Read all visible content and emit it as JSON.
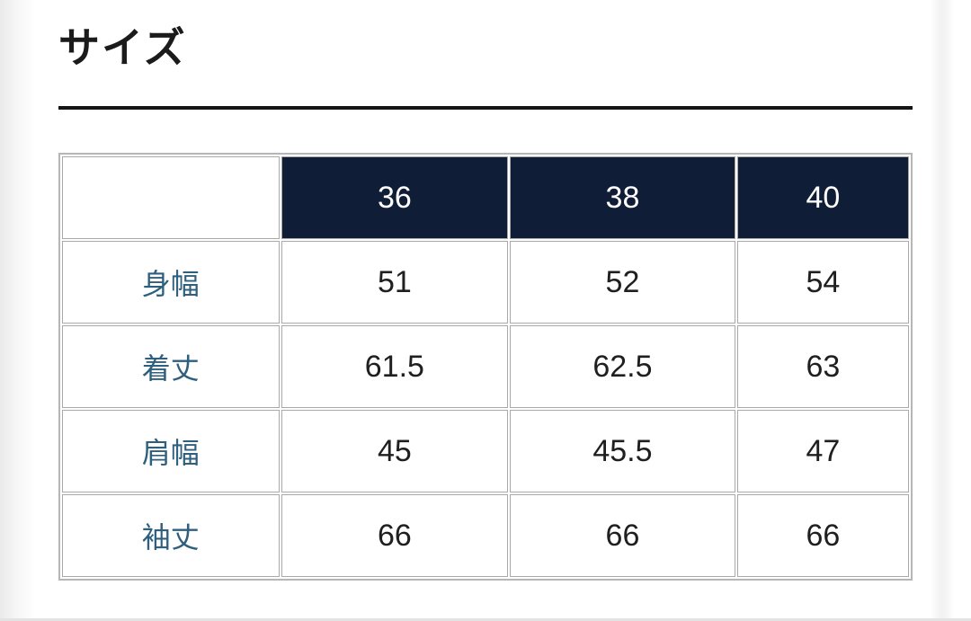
{
  "page": {
    "title": "サイズ"
  },
  "size_table": {
    "corner_label": "",
    "columns": [
      "36",
      "38",
      "40"
    ],
    "rows": [
      {
        "label": "身幅",
        "values": [
          "51",
          "52",
          "54"
        ]
      },
      {
        "label": "着丈",
        "values": [
          "61.5",
          "62.5",
          "63"
        ]
      },
      {
        "label": "肩幅",
        "values": [
          "45",
          "45.5",
          "47"
        ]
      },
      {
        "label": "袖丈",
        "values": [
          "66",
          "66",
          "66"
        ]
      }
    ]
  },
  "colors": {
    "header_bg": "#101d36",
    "header_text": "#ffffff",
    "row_label_text": "#2e5f7e",
    "cell_text": "#1f1f1f",
    "title_underline": "#151515",
    "grid_border": "#a9a9a9"
  }
}
